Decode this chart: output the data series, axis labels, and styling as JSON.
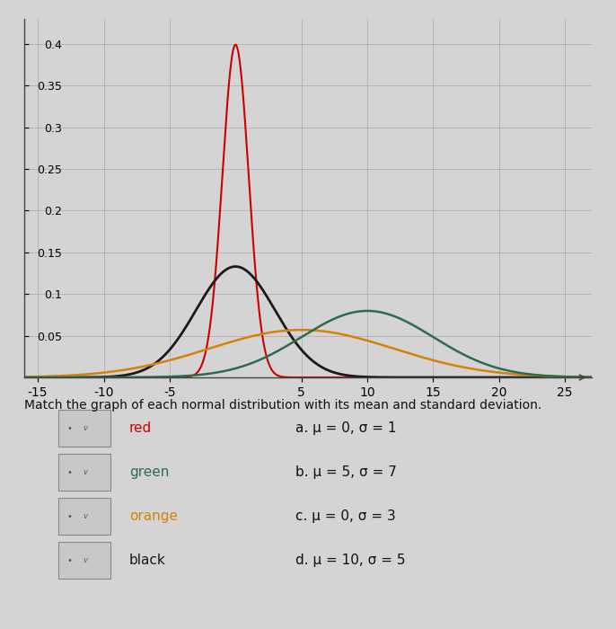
{
  "distributions": [
    {
      "mu": 0,
      "sigma": 1,
      "color": "#cc0000",
      "label": "red",
      "lw": 1.5
    },
    {
      "mu": 0,
      "sigma": 3,
      "color": "#1a1a1a",
      "label": "black",
      "lw": 2.0
    },
    {
      "mu": 5,
      "sigma": 7,
      "color": "#d4820a",
      "label": "orange",
      "lw": 1.8
    },
    {
      "mu": 10,
      "sigma": 5,
      "color": "#2d6b4f",
      "label": "green",
      "lw": 1.8
    }
  ],
  "xlim": [
    -16,
    27
  ],
  "ylim": [
    0,
    0.43
  ],
  "xticks": [
    -15,
    -10,
    -5,
    5,
    10,
    15,
    20,
    25
  ],
  "yticks": [
    0.05,
    0.1,
    0.15,
    0.2,
    0.25,
    0.3,
    0.35,
    0.4
  ],
  "ytick_labels": [
    "0.05",
    "0.1",
    "0.15",
    "0.2",
    "0.25",
    "0.3",
    "0.35",
    "0.4"
  ],
  "xtick_labels": [
    "-15",
    "-10",
    "-5",
    "5",
    "10",
    "15",
    "20",
    "25"
  ],
  "grid_color": "#b0b0b0",
  "bg_color": "#d4d4d4",
  "title_text": "Match the graph of each normal distribution with its mean and standard deviation.",
  "legend_items": [
    {
      "label": "red",
      "color": "#cc0000"
    },
    {
      "label": "green",
      "color": "#2d6b4f"
    },
    {
      "label": "orange",
      "color": "#d4820a"
    },
    {
      "label": "black",
      "color": "#1a1a1a"
    }
  ],
  "match_items": [
    {
      "text": "a. μ = 0, σ = 1"
    },
    {
      "text": "b. μ = 5, σ = 7"
    },
    {
      "text": "c. μ = 0, σ = 3"
    },
    {
      "text": "d. μ = 10, σ = 5"
    }
  ]
}
